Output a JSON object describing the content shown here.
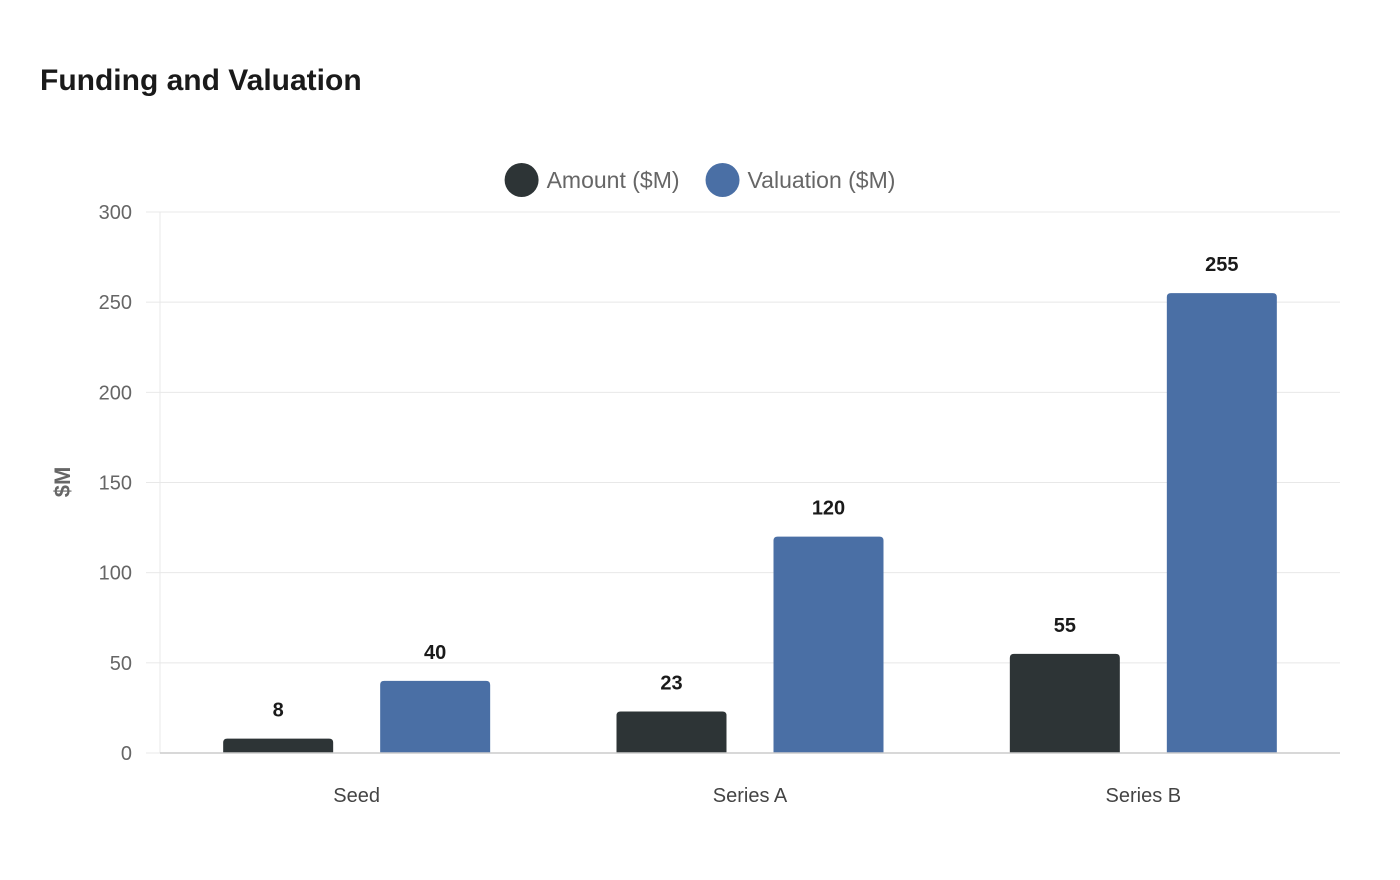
{
  "chart_data": {
    "type": "bar",
    "title": "Funding and Valuation",
    "xlabel": "",
    "ylabel": "$M",
    "categories": [
      "Seed",
      "Series A",
      "Series B"
    ],
    "series": [
      {
        "name": "Amount ($M)",
        "values": [
          8,
          23,
          55
        ],
        "color": "#2d3436"
      },
      {
        "name": "Valuation ($M)",
        "values": [
          40,
          120,
          255
        ],
        "color": "#4a6fa5"
      }
    ],
    "ylim": [
      0,
      300
    ],
    "yticks": [
      "0",
      "50",
      "100",
      "150",
      "200",
      "250",
      "300"
    ],
    "grid": true,
    "legend": "top-center",
    "data_labels": true
  }
}
